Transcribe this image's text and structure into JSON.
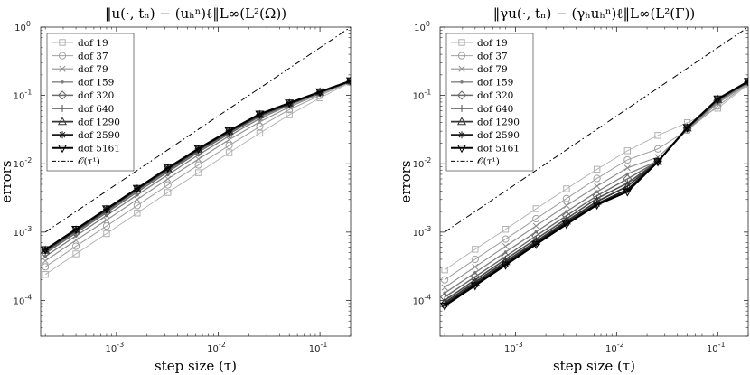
{
  "chart_data": [
    {
      "type": "line",
      "title": "‖u(·, tₙ) − (uₕⁿ)ℓ‖L∞(L²(Ω))",
      "xlabel": "step size (τ)",
      "ylabel": "errors",
      "xscale": "log",
      "yscale": "log",
      "xlim": [
        0.00018,
        0.2
      ],
      "ylim": [
        3e-05,
        1
      ],
      "xticks": [
        {
          "value": 0.001,
          "label": "10-3",
          "base": "10",
          "exp": "-3"
        },
        {
          "value": 0.01,
          "label": "10-2",
          "base": "10",
          "exp": "-2"
        },
        {
          "value": 0.1,
          "label": "10-1",
          "base": "10",
          "exp": "-1"
        }
      ],
      "yticks": [
        {
          "value": 0.0001,
          "label": "10-4",
          "base": "10",
          "exp": "-4"
        },
        {
          "value": 0.001,
          "label": "10-3",
          "base": "10",
          "exp": "-3"
        },
        {
          "value": 0.01,
          "label": "10-2",
          "base": "10",
          "exp": "-2"
        },
        {
          "value": 0.1,
          "label": "10-1",
          "base": "10",
          "exp": "-1"
        },
        {
          "value": 1,
          "label": "100",
          "base": "10",
          "exp": "0"
        }
      ],
      "legend_position": "top-left",
      "x": [
        0.0002,
        0.0004,
        0.0008,
        0.0016,
        0.0032,
        0.0064,
        0.0128,
        0.0256,
        0.05,
        0.1,
        0.2
      ],
      "series": [
        {
          "name": "dof 19",
          "marker": "square",
          "color": "#b0b0b0",
          "values": [
            0.00024,
            0.00048,
            0.00095,
            0.0019,
            0.0038,
            0.0074,
            0.0145,
            0.028,
            0.052,
            0.092,
            0.155
          ]
        },
        {
          "name": "dof 37",
          "marker": "circle",
          "color": "#a0a0a0",
          "values": [
            0.00031,
            0.00062,
            0.00123,
            0.00245,
            0.0049,
            0.0096,
            0.0185,
            0.035,
            0.062,
            0.1,
            0.158
          ]
        },
        {
          "name": "dof 79",
          "marker": "x",
          "color": "#909090",
          "values": [
            0.00038,
            0.00076,
            0.0015,
            0.003,
            0.006,
            0.0117,
            0.0225,
            0.041,
            0.068,
            0.105,
            0.16
          ]
        },
        {
          "name": "dof 159",
          "marker": "point",
          "color": "#808080",
          "values": [
            0.00044,
            0.00088,
            0.00175,
            0.0035,
            0.0069,
            0.0135,
            0.0255,
            0.046,
            0.072,
            0.108,
            0.16
          ]
        },
        {
          "name": "dof 320",
          "marker": "diamond",
          "color": "#6a6a6a",
          "values": [
            0.00049,
            0.00097,
            0.00193,
            0.00385,
            0.0076,
            0.0148,
            0.0275,
            0.049,
            0.074,
            0.11,
            0.161
          ]
        },
        {
          "name": "dof 640",
          "marker": "plus",
          "color": "#505050",
          "values": [
            0.00052,
            0.00103,
            0.00205,
            0.0041,
            0.0081,
            0.0157,
            0.029,
            0.051,
            0.075,
            0.111,
            0.162
          ]
        },
        {
          "name": "dof 1290",
          "marker": "triangle-up",
          "color": "#363636",
          "values": [
            0.00054,
            0.00107,
            0.00213,
            0.00425,
            0.0084,
            0.0162,
            0.0298,
            0.052,
            0.076,
            0.112,
            0.163
          ]
        },
        {
          "name": "dof 2590",
          "marker": "star",
          "color": "#1a1a1a",
          "values": [
            0.00055,
            0.00109,
            0.00217,
            0.00433,
            0.0086,
            0.0165,
            0.0302,
            0.053,
            0.077,
            0.112,
            0.163
          ]
        },
        {
          "name": "dof 5161",
          "marker": "triangle-down",
          "color": "#000000",
          "values": [
            0.000555,
            0.0011,
            0.00219,
            0.00437,
            0.0087,
            0.0167,
            0.0305,
            0.0535,
            0.0775,
            0.113,
            0.164
          ]
        }
      ],
      "reference": {
        "name": "𝒪(τ¹)",
        "style": "dash-dot",
        "x": [
          0.0002,
          0.2
        ],
        "values": [
          0.001,
          1.0
        ]
      }
    },
    {
      "type": "line",
      "title": "‖γu(·, tₙ) − (γₕuₕⁿ)ℓ‖L∞(L²(Γ))",
      "xlabel": "step size (τ)",
      "ylabel": "errors",
      "xscale": "log",
      "yscale": "log",
      "xlim": [
        0.00018,
        0.2
      ],
      "ylim": [
        3e-05,
        1
      ],
      "xticks": [
        {
          "value": 0.001,
          "label": "10-3",
          "base": "10",
          "exp": "-3"
        },
        {
          "value": 0.01,
          "label": "10-2",
          "base": "10",
          "exp": "-2"
        },
        {
          "value": 0.1,
          "label": "10-1",
          "base": "10",
          "exp": "-1"
        }
      ],
      "yticks": [
        {
          "value": 0.0001,
          "label": "10-4",
          "base": "10",
          "exp": "-4"
        },
        {
          "value": 0.001,
          "label": "10-3",
          "base": "10",
          "exp": "-3"
        },
        {
          "value": 0.01,
          "label": "10-2",
          "base": "10",
          "exp": "-2"
        },
        {
          "value": 0.1,
          "label": "10-1",
          "base": "10",
          "exp": "-1"
        },
        {
          "value": 1,
          "label": "100",
          "base": "10",
          "exp": "0"
        }
      ],
      "legend_position": "top-left",
      "x": [
        0.0002,
        0.0004,
        0.0008,
        0.0016,
        0.0032,
        0.0064,
        0.0128,
        0.0256,
        0.05,
        0.1,
        0.2
      ],
      "series": [
        {
          "name": "dof 19",
          "marker": "square",
          "color": "#b0b0b0",
          "values": [
            0.00028,
            0.00056,
            0.0011,
            0.0022,
            0.0043,
            0.0083,
            0.0155,
            0.026,
            0.04,
            0.065,
            0.145
          ]
        },
        {
          "name": "dof 37",
          "marker": "circle",
          "color": "#a0a0a0",
          "values": [
            0.0002,
            0.0004,
            0.00079,
            0.00157,
            0.0031,
            0.0061,
            0.0114,
            0.0165,
            0.031,
            0.07,
            0.15
          ]
        },
        {
          "name": "dof 79",
          "marker": "x",
          "color": "#909090",
          "values": [
            0.000155,
            0.00031,
            0.00062,
            0.00123,
            0.00245,
            0.0047,
            0.0087,
            0.0125,
            0.031,
            0.077,
            0.152
          ]
        },
        {
          "name": "dof 159",
          "marker": "point",
          "color": "#808080",
          "values": [
            0.000128,
            0.000255,
            0.00051,
            0.00101,
            0.002,
            0.0039,
            0.0071,
            0.011,
            0.032,
            0.081,
            0.155
          ]
        },
        {
          "name": "dof 320",
          "marker": "diamond",
          "color": "#6a6a6a",
          "values": [
            0.000112,
            0.000222,
            0.00044,
            0.00088,
            0.00174,
            0.0034,
            0.006,
            0.0109,
            0.033,
            0.084,
            0.157
          ]
        },
        {
          "name": "dof 640",
          "marker": "plus",
          "color": "#505050",
          "values": [
            0.0001,
            0.0002,
            0.0004,
            0.00079,
            0.00157,
            0.0031,
            0.0052,
            0.0108,
            0.033,
            0.086,
            0.158
          ]
        },
        {
          "name": "dof 1290",
          "marker": "triangle-up",
          "color": "#363636",
          "values": [
            9.3e-05,
            0.000185,
            0.00037,
            0.00073,
            0.00145,
            0.0028,
            0.0047,
            0.0108,
            0.0335,
            0.087,
            0.159
          ]
        },
        {
          "name": "dof 2590",
          "marker": "star",
          "color": "#1a1a1a",
          "values": [
            8.7e-05,
            0.000173,
            0.000345,
            0.00069,
            0.00137,
            0.0026,
            0.0042,
            0.0107,
            0.0335,
            0.088,
            0.16
          ]
        },
        {
          "name": "dof 5161",
          "marker": "triangle-down",
          "color": "#000000",
          "values": [
            8.3e-05,
            0.000165,
            0.00033,
            0.00066,
            0.0013,
            0.0025,
            0.0039,
            0.0107,
            0.034,
            0.089,
            0.161
          ]
        }
      ],
      "reference": {
        "name": "𝒪(τ¹)",
        "style": "dash-dot",
        "x": [
          0.0002,
          0.2
        ],
        "values": [
          0.001,
          1.0
        ]
      }
    }
  ]
}
